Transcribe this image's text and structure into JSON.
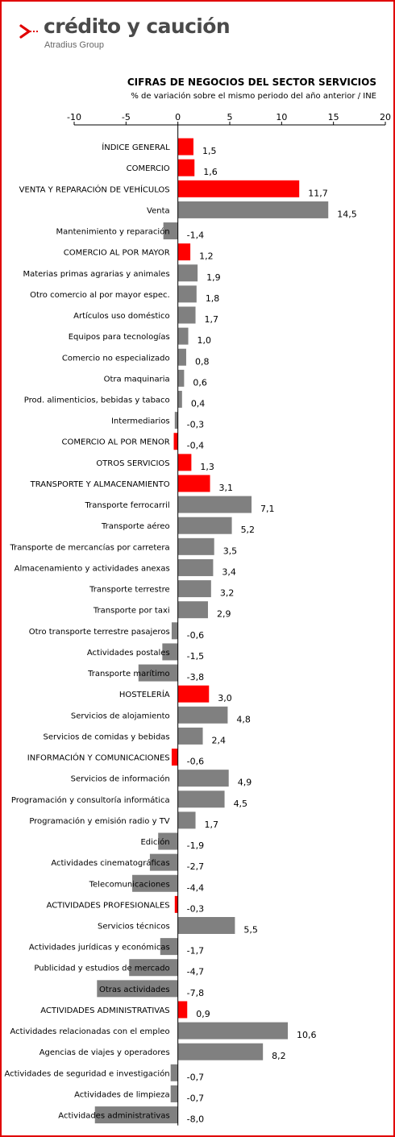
{
  "brand": {
    "name": "crédito y caución",
    "group": "Atradius Group",
    "accent_color": "#e10000"
  },
  "chart_data": {
    "type": "bar",
    "orientation": "horizontal",
    "title": "CIFRAS DE NEGOCIOS DEL SECTOR SERVICIOS",
    "subtitle": "% de variación sobre el mismo periodo del año anterior / INE",
    "xlim": [
      -10,
      20
    ],
    "x_ticks": [
      "-10",
      "-5",
      "0",
      "5",
      "10",
      "15",
      "20"
    ],
    "x_tick_values": [
      -10,
      -5,
      0,
      5,
      10,
      15,
      20
    ],
    "axis_position": "top",
    "grid": false,
    "legend": "none",
    "colors": {
      "sector_total": "#ff0000",
      "subsector": "#808080"
    },
    "categories": [
      "ÍNDICE GENERAL",
      "COMERCIO",
      "VENTA Y REPARACIÓN DE VEHÍCULOS",
      "Venta",
      "Mantenimiento y reparación",
      "COMERCIO AL POR MAYOR",
      "Materias primas agrarias y animales",
      "Otro comercio al por mayor espec.",
      "Artículos uso doméstico",
      "Equipos para tecnologías",
      "Comercio no especializado",
      "Otra maquinaria",
      "Prod. alimenticios, bebidas y tabaco",
      "Intermediarios",
      "COMERCIO AL POR MENOR",
      "OTROS SERVICIOS",
      "TRANSPORTE Y ALMACENAMIENTO",
      "Transporte ferrocarril",
      "Transporte aéreo",
      "Transporte de mercancías por carretera",
      "Almacenamiento y actividades anexas",
      "Transporte terrestre",
      "Transporte por taxi",
      "Otro transporte terrestre pasajeros",
      "Actividades postales",
      "Transporte marítimo",
      "HOSTELERÍA",
      "Servicios de alojamiento",
      "Servicios de comidas y bebidas",
      "INFORMACIÓN Y COMUNICACIONES",
      "Servicios de información",
      "Programación y consultoría informática",
      "Programación y emisión radio y TV",
      "Edición",
      "Actividades cinematográficas",
      "Telecomunicaciones",
      "ACTIVIDADES PROFESIONALES",
      "Servicios técnicos",
      "Actividades jurídicas y económicas",
      "Publicidad y estudios de mercado",
      "Otras actividades",
      "ACTIVIDADES ADMINISTRATIVAS",
      "Actividades relacionadas con el empleo",
      "Agencias de viajes y operadores",
      "Actividades de seguridad e investigación",
      "Actividades de limpieza",
      "Actividades administrativas"
    ],
    "values": [
      1.5,
      1.6,
      11.7,
      14.5,
      -1.4,
      1.2,
      1.9,
      1.8,
      1.7,
      1.0,
      0.8,
      0.6,
      0.4,
      -0.3,
      -0.4,
      1.3,
      3.1,
      7.1,
      5.2,
      3.5,
      3.4,
      3.2,
      2.9,
      -0.6,
      -1.5,
      -3.8,
      3.0,
      4.8,
      2.4,
      -0.6,
      4.9,
      4.5,
      1.7,
      -1.9,
      -2.7,
      -4.4,
      -0.3,
      5.5,
      -1.7,
      -4.7,
      -7.8,
      0.9,
      10.6,
      8.2,
      -0.7,
      -0.7,
      -8.0
    ],
    "value_labels": [
      "1,5",
      "1,6",
      "11,7",
      "14,5",
      "-1,4",
      "1,2",
      "1,9",
      "1,8",
      "1,7",
      "1,0",
      "0,8",
      "0,6",
      "0,4",
      "-0,3",
      "-0,4",
      "1,3",
      "3,1",
      "7,1",
      "5,2",
      "3,5",
      "3,4",
      "3,2",
      "2,9",
      "-0,6",
      "-1,5",
      "-3,8",
      "3,0",
      "4,8",
      "2,4",
      "-0,6",
      "4,9",
      "4,5",
      "1,7",
      "-1,9",
      "-2,7",
      "-4,4",
      "-0,3",
      "5,5",
      "-1,7",
      "-4,7",
      "-7,8",
      "0,9",
      "10,6",
      "8,2",
      "-0,7",
      "-0,7",
      "-8,0"
    ],
    "highlight": [
      true,
      true,
      true,
      false,
      false,
      true,
      false,
      false,
      false,
      false,
      false,
      false,
      false,
      false,
      true,
      true,
      true,
      false,
      false,
      false,
      false,
      false,
      false,
      false,
      false,
      false,
      true,
      false,
      false,
      true,
      false,
      false,
      false,
      false,
      false,
      false,
      true,
      false,
      false,
      false,
      false,
      true,
      false,
      false,
      false,
      false,
      false
    ]
  }
}
